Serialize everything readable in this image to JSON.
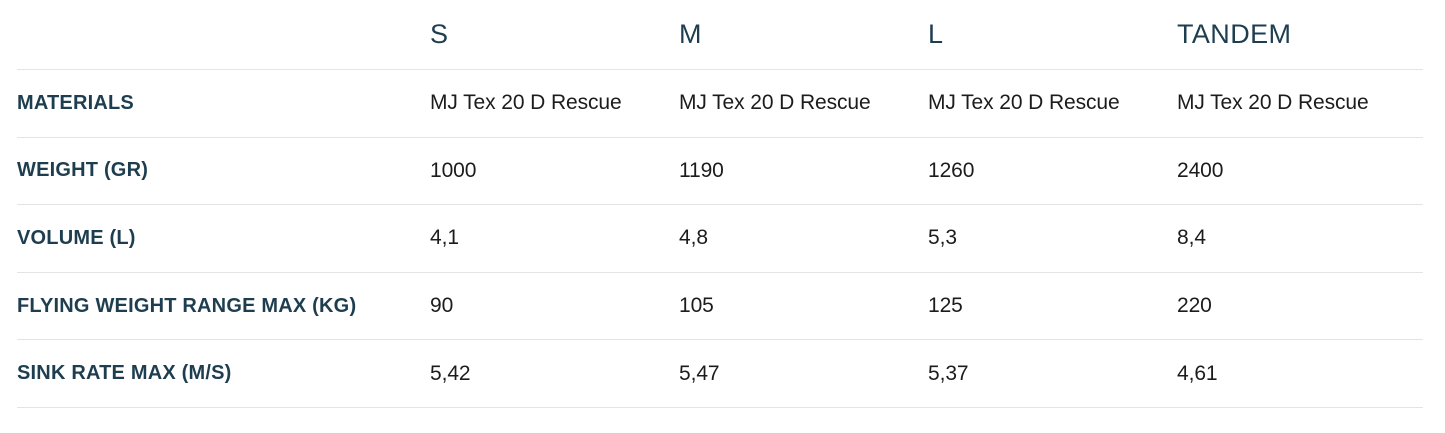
{
  "table": {
    "column_headers": [
      "S",
      "M",
      "L",
      "TANDEM"
    ],
    "rows": [
      {
        "label": "MATERIALS",
        "values": [
          "MJ Tex 20 D Rescue",
          "MJ Tex 20 D Rescue",
          "MJ Tex 20 D Rescue",
          "MJ Tex 20 D Rescue"
        ]
      },
      {
        "label": "WEIGHT (GR)",
        "values": [
          "1000",
          "1190",
          "1260",
          "2400"
        ]
      },
      {
        "label": "VOLUME (L)",
        "values": [
          "4,1",
          "4,8",
          "5,3",
          "8,4"
        ]
      },
      {
        "label": "FLYING WEIGHT RANGE MAX (KG)",
        "values": [
          "90",
          "105",
          "125",
          "220"
        ]
      },
      {
        "label": "SINK RATE MAX (M/S)",
        "values": [
          "5,42",
          "5,47",
          "5,37",
          "4,61"
        ]
      }
    ],
    "colors": {
      "header_text": "#1e3e50",
      "label_text": "#1e3e50",
      "value_text": "#1c1c1c",
      "divider": "#e4e4e4",
      "background": "#ffffff"
    }
  }
}
